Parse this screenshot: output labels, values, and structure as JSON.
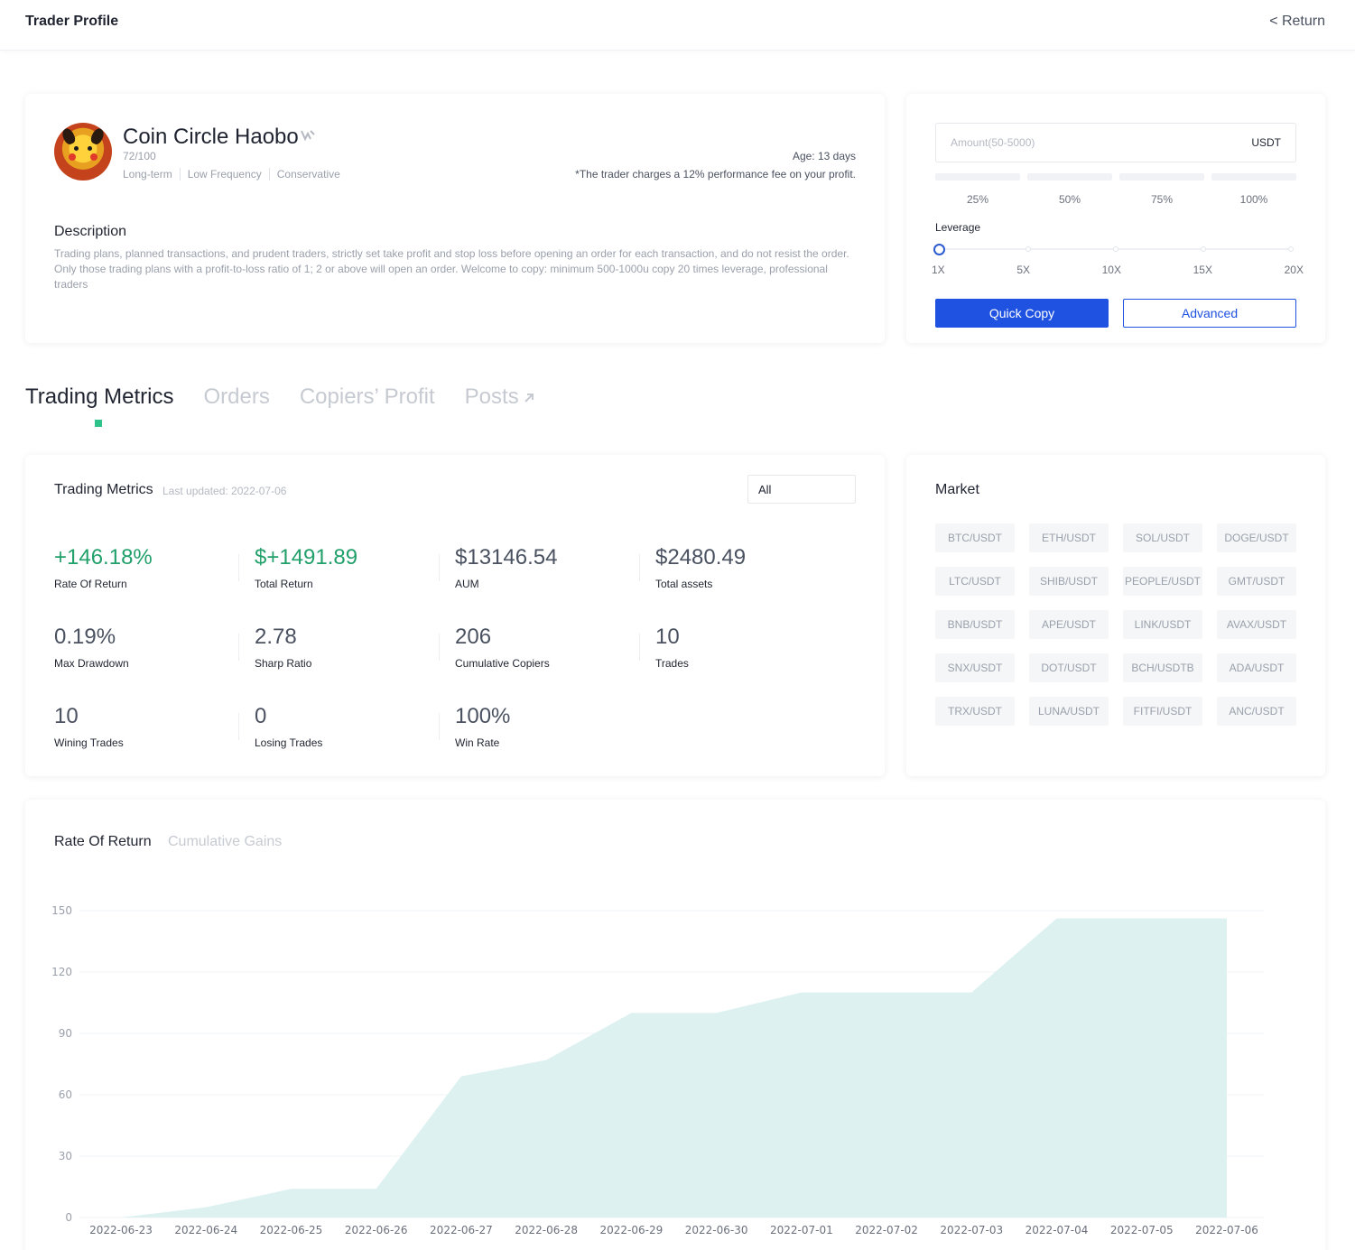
{
  "header": {
    "title": "Trader Profile",
    "return_label": "< Return"
  },
  "profile": {
    "name": "Coin Circle Haobo",
    "score": "72/100",
    "tags": [
      "Long-term",
      "Low Frequency",
      "Conservative"
    ],
    "age": "Age: 13 days",
    "fee_note": "*The trader charges a 12% performance fee on your profit.",
    "description_title": "Description",
    "description": "Trading plans, planned transactions, and prudent traders, strictly set take profit and stop loss before opening an order for each transaction, and do not resist the order. Only those trading plans with a profit-to-loss ratio of 1; 2 or above will open an order. Welcome to copy: minimum 500-1000u copy 20 times leverage, professional traders"
  },
  "copy_panel": {
    "amount_placeholder": "Amount(50-5000)",
    "amount_unit": "USDT",
    "percent_options": [
      "25%",
      "50%",
      "75%",
      "100%"
    ],
    "leverage_label": "Leverage",
    "leverage_marks": [
      "1X",
      "5X",
      "10X",
      "15X",
      "20X"
    ],
    "leverage_value": "1X",
    "quick_copy_label": "Quick Copy",
    "advanced_label": "Advanced"
  },
  "tabs": [
    {
      "label": "Trading Metrics",
      "active": true
    },
    {
      "label": "Orders",
      "active": false
    },
    {
      "label": "Copiers’ Profit",
      "active": false
    },
    {
      "label": "Posts",
      "active": false
    }
  ],
  "metrics": {
    "title": "Trading Metrics",
    "last_updated": "Last updated: 2022-07-06",
    "filter_value": "All",
    "stats": [
      {
        "value": "+146.18%",
        "label": "Rate Of Return",
        "positive": true
      },
      {
        "value": "$+1491.89",
        "label": "Total Return",
        "positive": true
      },
      {
        "value": "$13146.54",
        "label": "AUM",
        "positive": false
      },
      {
        "value": "$2480.49",
        "label": "Total assets",
        "positive": false
      },
      {
        "value": "0.19%",
        "label": "Max Drawdown",
        "positive": false
      },
      {
        "value": "2.78",
        "label": "Sharp Ratio",
        "positive": false
      },
      {
        "value": "206",
        "label": "Cumulative Copiers",
        "positive": false
      },
      {
        "value": "10",
        "label": "Trades",
        "positive": false
      },
      {
        "value": "10",
        "label": "Wining Trades",
        "positive": false
      },
      {
        "value": "0",
        "label": "Losing Trades",
        "positive": false
      },
      {
        "value": "100%",
        "label": "Win Rate",
        "positive": false
      }
    ]
  },
  "market": {
    "title": "Market",
    "pairs": [
      "BTC/USDT",
      "ETH/USDT",
      "SOL/USDT",
      "DOGE/USDT",
      "LTC/USDT",
      "SHIB/USDT",
      "PEOPLE/USDT",
      "GMT/USDT",
      "BNB/USDT",
      "APE/USDT",
      "LINK/USDT",
      "AVAX/USDT",
      "SNX/USDT",
      "DOT/USDT",
      "BCH/USDTB",
      "ADA/USDT",
      "TRX/USDT",
      "LUNA/USDT",
      "FITFI/USDT",
      "ANC/USDT"
    ]
  },
  "chart_tabs": {
    "active": "Rate Of Return",
    "inactive": "Cumulative Gains"
  },
  "colors": {
    "accent": "#1f52e0",
    "positive": "#22a06b",
    "area_fill": "#dcf1f0",
    "tab_indicator": "#2ec38a"
  },
  "chart_data": {
    "type": "area",
    "x": [
      "2022-06-23",
      "2022-06-24",
      "2022-06-25",
      "2022-06-26",
      "2022-06-27",
      "2022-06-28",
      "2022-06-29",
      "2022-06-30",
      "2022-07-01",
      "2022-07-02",
      "2022-07-03",
      "2022-07-04",
      "2022-07-05",
      "2022-07-06"
    ],
    "values": [
      0,
      5,
      14,
      14,
      69,
      77,
      100,
      100,
      110,
      110,
      110,
      146.18,
      146.18,
      146.18
    ],
    "ylim": [
      0,
      150
    ],
    "yticks": [
      0,
      30,
      60,
      90,
      120,
      150
    ],
    "grid": true,
    "legend": "none"
  }
}
